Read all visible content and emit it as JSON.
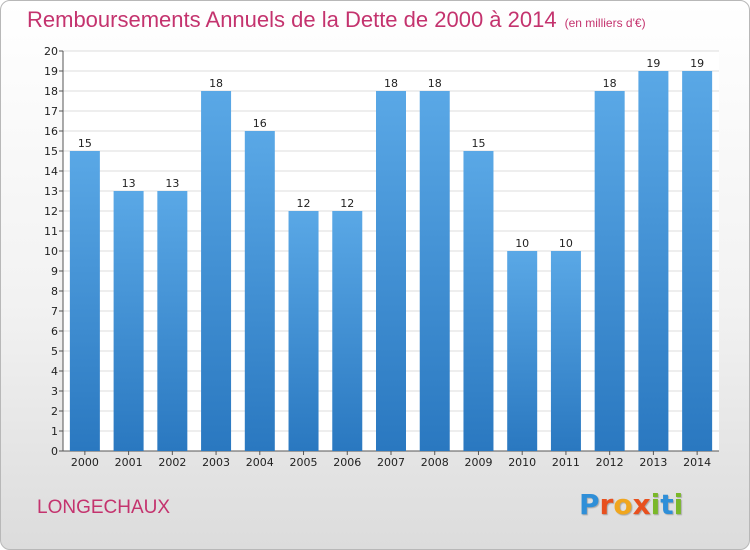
{
  "header": {
    "title": "Remboursements Annuels de la Dette de 2000 à 2014",
    "subtitle": "(en milliers d'€)"
  },
  "footer": {
    "commune": "LONGECHAUX",
    "logo_letters": [
      "P",
      "r",
      "o",
      "x",
      "i",
      "t",
      "i"
    ],
    "logo_colors": [
      "#2f8fd8",
      "#e8501e",
      "#f0a61e",
      "#e8501e",
      "#7ab829",
      "#2f8fd8",
      "#7ab829"
    ]
  },
  "chart_data": {
    "type": "bar",
    "title": "Remboursements Annuels de la Dette de 2000 à 2014",
    "xlabel": "",
    "ylabel": "",
    "categories": [
      "2000",
      "2001",
      "2002",
      "2003",
      "2004",
      "2005",
      "2006",
      "2007",
      "2008",
      "2009",
      "2010",
      "2011",
      "2012",
      "2013",
      "2014"
    ],
    "values": [
      15,
      13,
      13,
      18,
      16,
      12,
      12,
      18,
      18,
      15,
      10,
      10,
      18,
      19,
      19
    ],
    "ylim": [
      0,
      20
    ],
    "yticks": [
      0,
      1,
      2,
      3,
      4,
      5,
      6,
      7,
      8,
      9,
      10,
      11,
      12,
      13,
      14,
      15,
      16,
      17,
      18,
      19,
      20
    ],
    "grid": true,
    "colors": {
      "bar_top": "#5aa8e6",
      "bar_bottom": "#2a78c0",
      "grid": "#dddddd"
    }
  }
}
